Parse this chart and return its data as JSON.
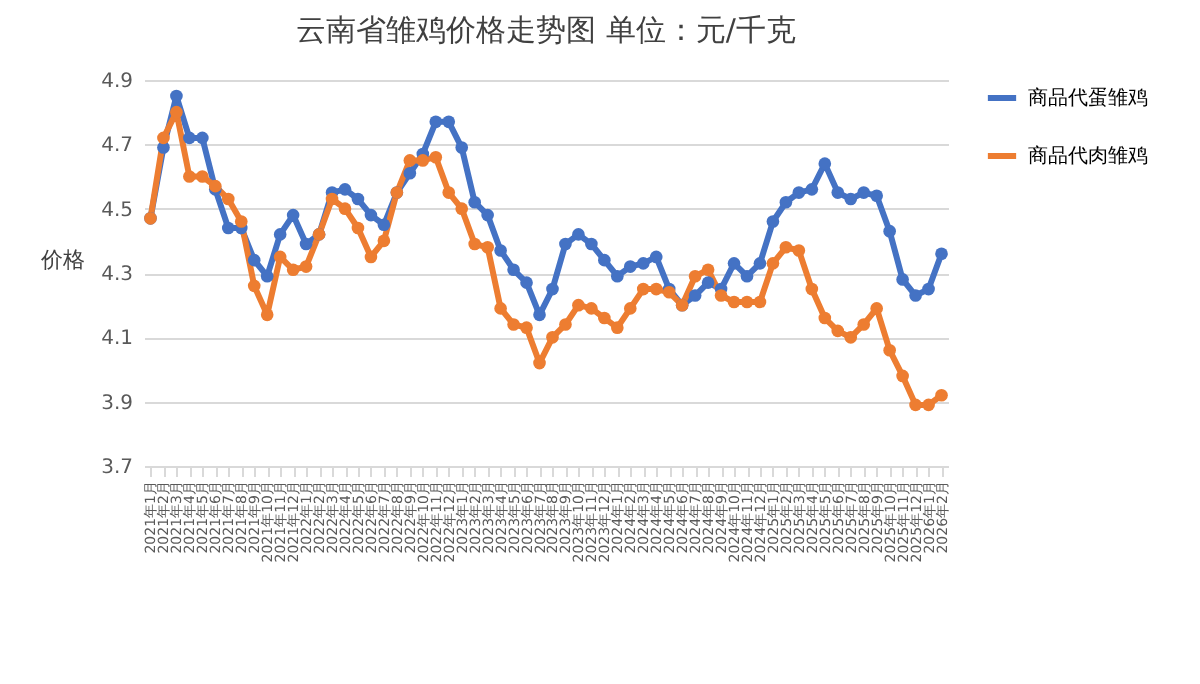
{
  "chart_data": {
    "type": "line",
    "title": "云南省雏鸡价格走势图      单位：元/千克",
    "ylabel": "价格",
    "categories": [
      "2021年1月",
      "2021年2月",
      "2021年3月",
      "2021年4月",
      "2021年5月",
      "2021年6月",
      "2021年7月",
      "2021年8月",
      "2021年9月",
      "2021年10月",
      "2021年11月",
      "2021年12月",
      "2022年1月",
      "2022年2月",
      "2022年3月",
      "2022年4月",
      "2022年5月",
      "2022年6月",
      "2022年7月",
      "2022年8月",
      "2022年9月",
      "2022年10月",
      "2022年11月",
      "2022年12月",
      "2023年1月",
      "2023年2月",
      "2023年3月",
      "2023年4月",
      "2023年5月",
      "2023年6月",
      "2023年7月",
      "2023年8月",
      "2023年9月",
      "2023年10月",
      "2023年11月",
      "2023年12月",
      "2024年1月",
      "2024年2月",
      "2024年3月",
      "2024年4月",
      "2024年5月",
      "2024年6月",
      "2024年7月",
      "2024年8月",
      "2024年9月",
      "2024年10月",
      "2024年11月",
      "2024年12月",
      "2025年1月",
      "2025年2月",
      "2025年3月",
      "2025年4月",
      "2025年5月",
      "2025年6月",
      "2025年7月",
      "2025年8月",
      "2025年9月",
      "2025年10月",
      "2025年11月",
      "2025年12月",
      "2026年1月",
      "2026年2月"
    ],
    "series": [
      {
        "name": "商品代蛋雏鸡",
        "color": "#4472c4",
        "values": [
          4.47,
          4.69,
          4.85,
          4.72,
          4.72,
          4.56,
          4.44,
          4.44,
          4.34,
          4.29,
          4.42,
          4.48,
          4.39,
          4.42,
          4.55,
          4.56,
          4.53,
          4.48,
          4.45,
          4.55,
          4.61,
          4.67,
          4.77,
          4.77,
          4.69,
          4.52,
          4.48,
          4.37,
          4.31,
          4.27,
          4.17,
          4.25,
          4.39,
          4.42,
          4.39,
          4.34,
          4.29,
          4.32,
          4.33,
          4.35,
          4.25,
          4.2,
          4.23,
          4.27,
          4.25,
          4.33,
          4.29,
          4.33,
          4.46,
          4.52,
          4.55,
          4.56,
          4.64,
          4.55,
          4.53,
          4.55,
          4.54,
          4.43,
          4.28,
          4.23,
          4.25,
          4.36
        ]
      },
      {
        "name": "商品代肉雏鸡",
        "color": "#ed7d31",
        "values": [
          4.47,
          4.72,
          4.8,
          4.6,
          4.6,
          4.57,
          4.53,
          4.46,
          4.26,
          4.17,
          4.35,
          4.31,
          4.32,
          4.42,
          4.53,
          4.5,
          4.44,
          4.35,
          4.4,
          4.55,
          4.65,
          4.65,
          4.66,
          4.55,
          4.5,
          4.39,
          4.38,
          4.19,
          4.14,
          4.13,
          4.02,
          4.1,
          4.14,
          4.2,
          4.19,
          4.16,
          4.13,
          4.19,
          4.25,
          4.25,
          4.24,
          4.2,
          4.29,
          4.31,
          4.23,
          4.21,
          4.21,
          4.21,
          4.33,
          4.38,
          4.37,
          4.25,
          4.16,
          4.12,
          4.1,
          4.14,
          4.19,
          4.06,
          3.98,
          3.89,
          3.89,
          3.92
        ]
      }
    ],
    "ylim": [
      3.7,
      4.9
    ],
    "yticks": [
      3.7,
      3.9,
      4.1,
      4.3,
      4.5,
      4.7,
      4.9
    ],
    "grid": "y",
    "legend": "right",
    "marker": "circle",
    "line_style": "solid"
  }
}
